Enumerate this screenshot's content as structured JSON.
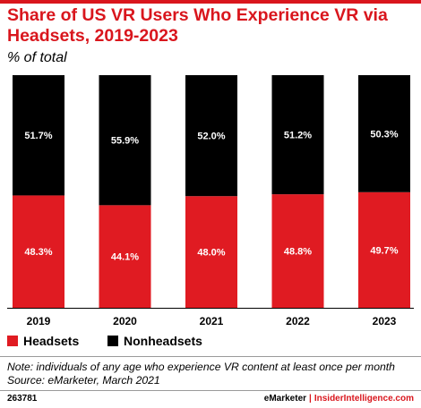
{
  "title": "Share of US VR Users Who Experience VR via Headsets, 2019-2023",
  "subtitle": "% of total",
  "colors": {
    "headsets": "#e01b22",
    "nonheadsets": "#000000",
    "accent": "#d9161d"
  },
  "chart_data": {
    "type": "bar",
    "stacked": true,
    "title": "Share of US VR Users Who Experience VR via Headsets, 2019-2023",
    "subtitle": "% of total",
    "categories": [
      "2019",
      "2020",
      "2021",
      "2022",
      "2023"
    ],
    "series": [
      {
        "name": "Headsets",
        "color": "#e01b22",
        "values": [
          48.3,
          44.1,
          48.0,
          48.8,
          49.7
        ],
        "labels": [
          "48.3%",
          "44.1%",
          "48.0%",
          "48.8%",
          "49.7%"
        ]
      },
      {
        "name": "Nonheadsets",
        "color": "#000000",
        "values": [
          51.7,
          55.9,
          52.0,
          51.2,
          50.3
        ],
        "labels": [
          "51.7%",
          "55.9%",
          "52.0%",
          "51.2%",
          "50.3%"
        ]
      }
    ],
    "ylim": [
      0,
      100
    ],
    "legend": "bottom-left"
  },
  "note": "Note: individuals of any age who experience VR content at least once per month",
  "source": "Source: eMarketer, March 2021",
  "footer": {
    "id": "263781",
    "brand": "eMarketer",
    "separator": "|",
    "site": "InsiderIntelligence.com"
  }
}
